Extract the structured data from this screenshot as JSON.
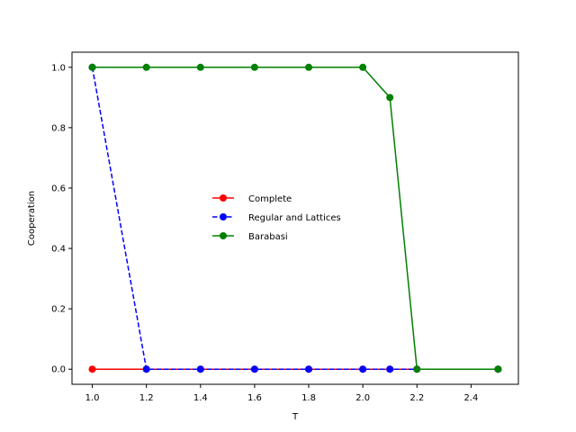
{
  "chart_data": {
    "type": "line",
    "xlabel": "T",
    "ylabel": "Cooperation",
    "xlim": [
      0.925,
      2.575
    ],
    "ylim": [
      -0.05,
      1.05
    ],
    "xticks": [
      "1.0",
      "1.2",
      "1.4",
      "1.6",
      "1.8",
      "2.0",
      "2.2",
      "2.4"
    ],
    "yticks": [
      "0.0",
      "0.2",
      "0.4",
      "0.6",
      "0.8",
      "1.0"
    ],
    "grid": false,
    "legend_position": "center",
    "series": [
      {
        "name": "Complete",
        "color": "#ff0000",
        "linestyle": "solid",
        "marker": "circle",
        "x": [
          1.0,
          1.2,
          1.4,
          1.6,
          1.8,
          2.0,
          2.1,
          2.2,
          2.5
        ],
        "y": [
          0.0,
          0.0,
          0.0,
          0.0,
          0.0,
          0.0,
          0.0,
          0.0,
          0.0
        ]
      },
      {
        "name": "Regular and Lattices",
        "color": "#0000ff",
        "linestyle": "dashed",
        "marker": "circle",
        "x": [
          1.0,
          1.2,
          1.4,
          1.6,
          1.8,
          2.0,
          2.1,
          2.2,
          2.5
        ],
        "y": [
          1.0,
          0.0,
          0.0,
          0.0,
          0.0,
          0.0,
          0.0,
          0.0,
          0.0
        ]
      },
      {
        "name": "Barabasi",
        "color": "#008000",
        "linestyle": "solid",
        "marker": "circle",
        "x": [
          1.0,
          1.2,
          1.4,
          1.6,
          1.8,
          2.0,
          2.1,
          2.2,
          2.5
        ],
        "y": [
          1.0,
          1.0,
          1.0,
          1.0,
          1.0,
          1.0,
          0.9,
          0.0,
          0.0
        ]
      }
    ]
  }
}
